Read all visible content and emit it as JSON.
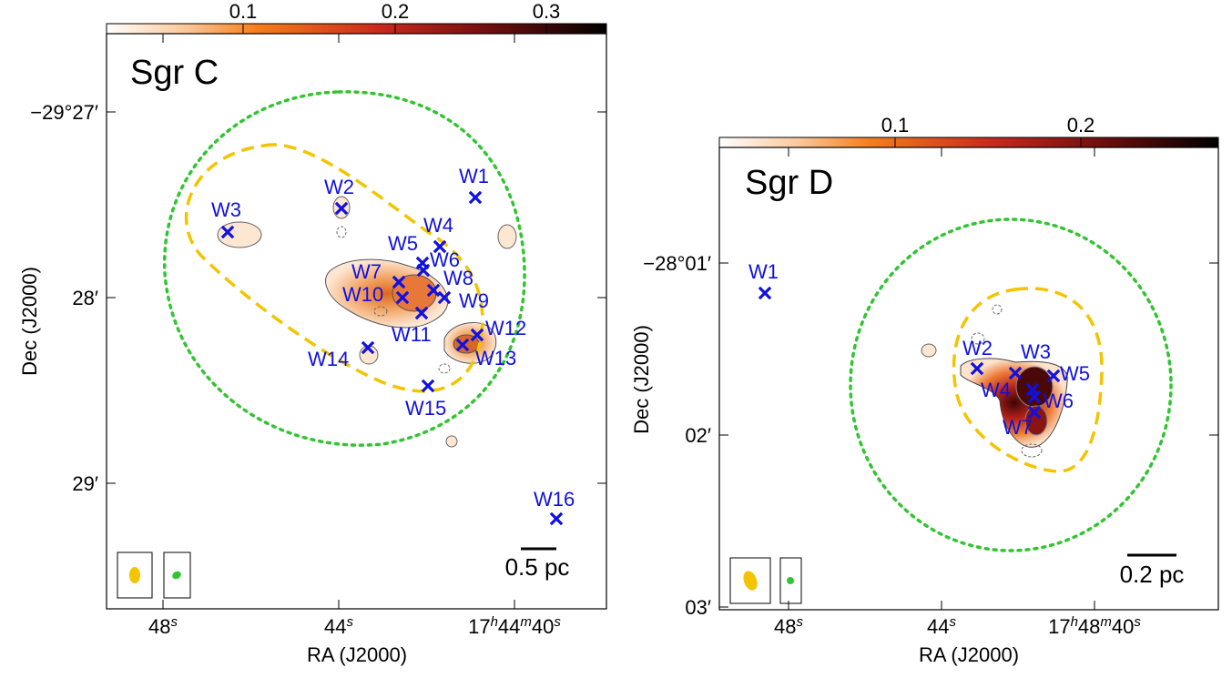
{
  "colors": {
    "source_marker": "#1010e0",
    "inner_contour": "#f4c400",
    "outer_contour": "#33c433",
    "map_cmap": [
      "#ffffff",
      "#fbc79a",
      "#f57e1c",
      "#c8281c",
      "#6a0d0d",
      "#000000"
    ]
  },
  "chart_data": [
    {
      "type": "heatmap",
      "title": "Sgr C",
      "xlabel": "RA (J2000)",
      "ylabel": "Dec (J2000)",
      "xticks": [
        "48s",
        "44s",
        "17h44m40s"
      ],
      "yticks": [
        "−29°27′",
        "28′",
        "29′"
      ],
      "colorbar": {
        "ticks": [
          "0.1",
          "0.2",
          "0.3"
        ],
        "range": [
          0,
          0.33
        ],
        "placement": "top"
      },
      "scale_bar": "0.5 pc",
      "sources": [
        "W1",
        "W2",
        "W3",
        "W4",
        "W5",
        "W6",
        "W7",
        "W8",
        "W9",
        "W10",
        "W11",
        "W12",
        "W13",
        "W14",
        "W15",
        "W16"
      ],
      "grid": false
    },
    {
      "type": "heatmap",
      "title": "Sgr D",
      "xlabel": "RA (J2000)",
      "ylabel": "Dec (J2000)",
      "xticks": [
        "48s",
        "44s",
        "17h48m40s"
      ],
      "yticks": [
        "−28°01′",
        "02′",
        "03′"
      ],
      "colorbar": {
        "ticks": [
          "0.1",
          "0.2"
        ],
        "range": [
          0,
          0.27
        ],
        "placement": "top"
      },
      "scale_bar": "0.2 pc",
      "sources": [
        "W1",
        "W2",
        "W3",
        "W4",
        "W5",
        "W6",
        "W7"
      ],
      "grid": false
    }
  ]
}
